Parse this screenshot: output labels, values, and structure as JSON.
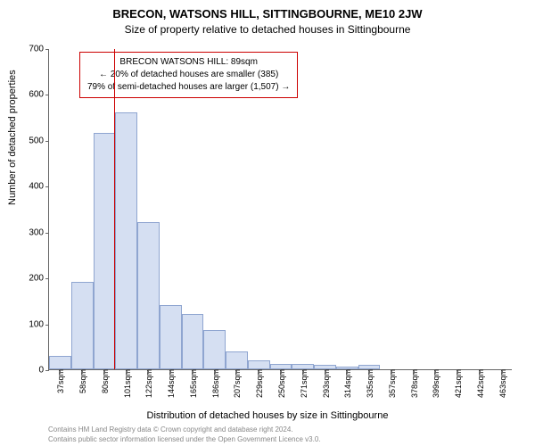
{
  "title": "BRECON, WATSONS HILL, SITTINGBOURNE, ME10 2JW",
  "subtitle": "Size of property relative to detached houses in Sittingbourne",
  "y_axis_label": "Number of detached properties",
  "x_axis_label": "Distribution of detached houses by size in Sittingbourne",
  "footer_line1": "Contains HM Land Registry data © Crown copyright and database right 2024.",
  "footer_line2": "Contains public sector information licensed under the Open Government Licence v3.0.",
  "info_box": {
    "line1": "BRECON WATSONS HILL: 89sqm",
    "line2": "← 20% of detached houses are smaller (385)",
    "line3": "79% of semi-detached houses are larger (1,507) →"
  },
  "chart": {
    "type": "histogram",
    "ylim": [
      0,
      700
    ],
    "ytick_step": 100,
    "yticks": [
      0,
      100,
      200,
      300,
      400,
      500,
      600,
      700
    ],
    "x_categories": [
      "37sqm",
      "58sqm",
      "80sqm",
      "101sqm",
      "122sqm",
      "144sqm",
      "165sqm",
      "186sqm",
      "207sqm",
      "229sqm",
      "250sqm",
      "271sqm",
      "293sqm",
      "314sqm",
      "335sqm",
      "357sqm",
      "378sqm",
      "399sqm",
      "421sqm",
      "442sqm",
      "463sqm"
    ],
    "values": [
      30,
      190,
      515,
      560,
      320,
      140,
      120,
      85,
      38,
      20,
      12,
      12,
      10,
      5,
      10,
      0,
      0,
      0,
      0,
      0,
      0
    ],
    "bar_color": "#d5dff2",
    "bar_border_color": "#8fa5d0",
    "marker_value": 89,
    "marker_color": "#cc0000",
    "x_min": 37,
    "x_step": 21.3,
    "background_color": "#ffffff",
    "axis_color": "#666666"
  }
}
